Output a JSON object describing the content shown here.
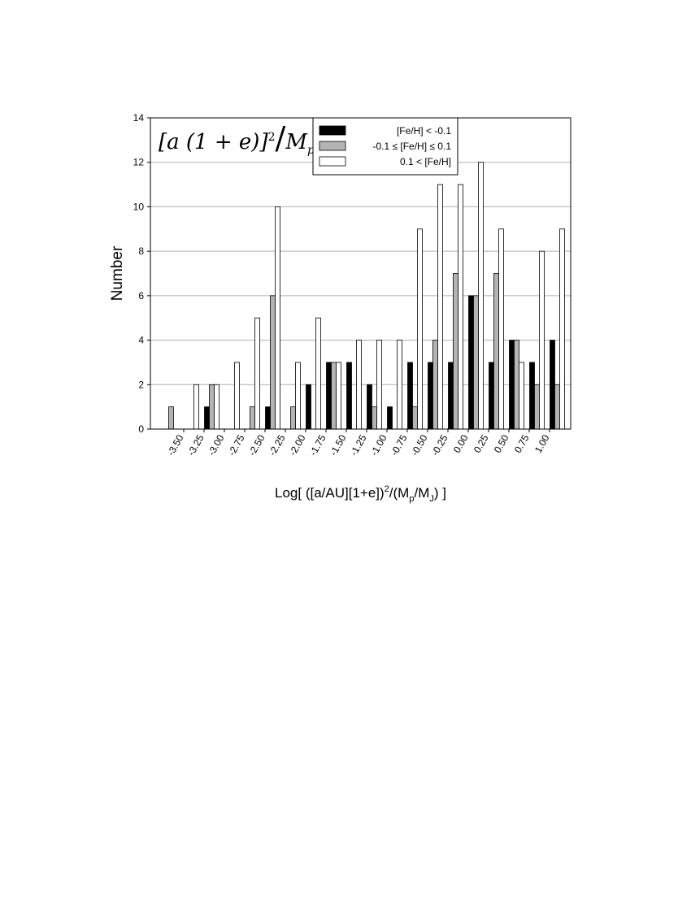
{
  "chart_data": {
    "type": "histogram",
    "annotation_parts": [
      "[a (1 + e)]",
      "2",
      "/",
      "M",
      "p"
    ],
    "y_label": "Number",
    "x_label_parts": [
      "Log[ ([a/AU][1+e])",
      "2",
      "/(M",
      "p",
      "/M",
      "J",
      ") ]"
    ],
    "bins": [
      -3.75,
      -3.5,
      -3.25,
      -3.0,
      -2.75,
      -2.5,
      -2.25,
      -2.0,
      -1.75,
      -1.5,
      -1.25,
      -1.0,
      -0.75,
      -0.5,
      -0.25,
      0.0,
      0.25,
      0.5,
      0.75,
      1.0,
      1.25
    ],
    "series": [
      {
        "name": "[Fe/H] < -0.1",
        "color": "#000000",
        "values": [
          0,
          0,
          1,
          0,
          0,
          1,
          0,
          2,
          3,
          3,
          2,
          1,
          3,
          3,
          3,
          6,
          3,
          4,
          3,
          4
        ]
      },
      {
        "name": "-0.1 ≤ [Fe/H] ≤ 0.1",
        "color": "#b4b4b4",
        "values": [
          1,
          0,
          2,
          0,
          1,
          6,
          1,
          0,
          3,
          0,
          1,
          0,
          1,
          4,
          7,
          6,
          7,
          4,
          2,
          2
        ]
      },
      {
        "name": "0.1 < [Fe/H]",
        "color": "#ffffff",
        "values": [
          0,
          2,
          2,
          3,
          5,
          10,
          3,
          5,
          3,
          4,
          4,
          4,
          9,
          11,
          11,
          12,
          9,
          3,
          8,
          9
        ]
      }
    ],
    "xlim": [
      -3.91,
      1.26
    ],
    "ylim": [
      0,
      14
    ],
    "xticks": [
      {
        "value": -3.5,
        "label": "-3.50"
      },
      {
        "value": -3.25,
        "label": "-3.25"
      },
      {
        "value": -3.0,
        "label": "-3.00"
      },
      {
        "value": -2.75,
        "label": "-2.75"
      },
      {
        "value": -2.5,
        "label": "-2.50"
      },
      {
        "value": -2.25,
        "label": "-2.25"
      },
      {
        "value": -2.0,
        "label": "-2.00"
      },
      {
        "value": -1.75,
        "label": "-1.75"
      },
      {
        "value": -1.5,
        "label": "-1.50"
      },
      {
        "value": -1.25,
        "label": "-1.25"
      },
      {
        "value": -1.0,
        "label": "-1.00"
      },
      {
        "value": -0.75,
        "label": "-0.75"
      },
      {
        "value": -0.5,
        "label": "-0.50"
      },
      {
        "value": -0.25,
        "label": "-0.25"
      },
      {
        "value": 0.0,
        "label": "0.00"
      },
      {
        "value": 0.25,
        "label": "0.25"
      },
      {
        "value": 0.5,
        "label": "0.50"
      },
      {
        "value": 0.75,
        "label": "0.75"
      },
      {
        "value": 1.0,
        "label": "1.00"
      }
    ],
    "yticks": [
      0,
      2,
      4,
      6,
      8,
      10,
      12,
      14
    ],
    "grid": true,
    "legend": "top"
  }
}
